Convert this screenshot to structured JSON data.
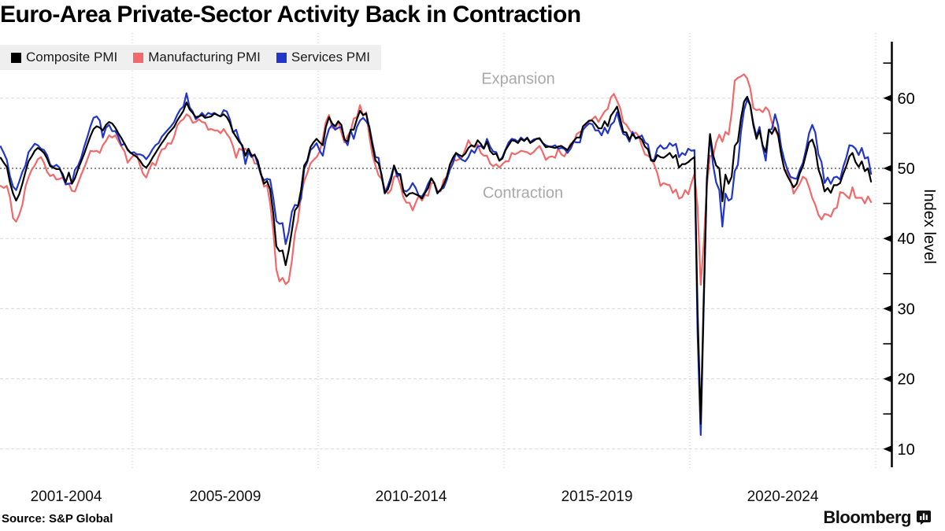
{
  "header": {
    "title": "Euro-Area Private-Sector Activity Back in Contraction"
  },
  "legend": {
    "items": [
      {
        "label": "Composite PMI",
        "color": "#000000"
      },
      {
        "label": "Manufacturing PMI",
        "color": "#f2696b"
      },
      {
        "label": "Services PMI",
        "color": "#2236c7"
      }
    ]
  },
  "chart_data": {
    "type": "line",
    "frequency": "monthly",
    "x_start": "2001-06",
    "x_end": "2024-11",
    "x_group_labels": [
      "2001-2004",
      "2005-2009",
      "2010-2014",
      "2015-2019",
      "2020-2024"
    ],
    "x_group_boundaries_years": [
      2005,
      2010,
      2015,
      2020,
      2025
    ],
    "ylabel": "Index level",
    "ylim": [
      7.5,
      68
    ],
    "yticks": [
      10,
      20,
      30,
      40,
      50,
      60
    ],
    "yticks_minor": [
      15,
      25,
      35,
      45,
      55,
      65
    ],
    "threshold": {
      "value": 50,
      "above_label": "Expansion",
      "below_label": "Contraction"
    },
    "grid": true,
    "legend_position": "top-left",
    "series": [
      {
        "name": "Composite PMI",
        "color": "#000000",
        "values": [
          51.5,
          50.8,
          50.2,
          48.0,
          46.4,
          45.4,
          46.3,
          47.8,
          49.5,
          51.0,
          51.7,
          52.5,
          52.9,
          52.6,
          52.2,
          51.4,
          50.3,
          50.1,
          49.9,
          49.9,
          49.2,
          48.0,
          49.4,
          47.8,
          48.6,
          49.9,
          51.0,
          52.1,
          53.4,
          54.6,
          55.6,
          56.0,
          55.8,
          55.4,
          56.2,
          56.6,
          56.4,
          55.8,
          55.0,
          54.3,
          53.5,
          52.7,
          52.2,
          51.9,
          51.6,
          51.1,
          50.4,
          50.1,
          50.7,
          51.5,
          52.2,
          52.9,
          53.6,
          54.2,
          54.9,
          55.4,
          55.9,
          56.8,
          57.5,
          58.2,
          59.4,
          58.4,
          57.9,
          57.3,
          57.4,
          57.6,
          57.2,
          57.3,
          57.4,
          57.8,
          57.6,
          57.4,
          57.7,
          57.3,
          56.5,
          55.2,
          54.5,
          53.8,
          53.3,
          51.8,
          52.8,
          51.8,
          51.9,
          51.1,
          49.3,
          47.8,
          48.2,
          47.0,
          43.6,
          38.9,
          38.2,
          38.3,
          36.2,
          38.3,
          41.1,
          44.0,
          44.6,
          47.0,
          50.4,
          51.1,
          53.0,
          53.7,
          54.2,
          53.7,
          53.3,
          55.9,
          57.3,
          56.4,
          56.0,
          56.7,
          56.2,
          54.1,
          53.8,
          55.5,
          55.5,
          57.0,
          58.2,
          57.6,
          57.8,
          55.8,
          53.3,
          51.1,
          50.7,
          49.1,
          46.5,
          47.0,
          48.3,
          50.4,
          49.3,
          49.1,
          46.7,
          46.0,
          46.4,
          46.5,
          46.3,
          46.1,
          45.7,
          46.5,
          47.2,
          48.6,
          47.9,
          46.5,
          46.9,
          47.7,
          48.7,
          50.5,
          51.5,
          52.2,
          51.9,
          51.7,
          52.1,
          52.9,
          53.3,
          53.1,
          54.0,
          53.5,
          52.8,
          53.8,
          52.5,
          52.0,
          52.1,
          51.1,
          51.4,
          52.6,
          53.3,
          54.0,
          53.9,
          53.6,
          54.2,
          53.9,
          54.3,
          53.6,
          53.9,
          54.2,
          54.3,
          53.6,
          53.0,
          53.1,
          53.0,
          52.9,
          53.1,
          53.2,
          52.9,
          52.6,
          53.3,
          53.9,
          54.4,
          54.4,
          56.0,
          56.4,
          56.8,
          56.8,
          56.3,
          55.7,
          55.7,
          56.7,
          56.0,
          57.5,
          58.1,
          58.8,
          57.1,
          55.2,
          55.1,
          54.1,
          54.9,
          54.3,
          54.5,
          54.1,
          53.1,
          52.7,
          51.1,
          51.0,
          51.9,
          51.6,
          51.5,
          51.8,
          52.2,
          51.5,
          51.9,
          50.1,
          50.6,
          50.6,
          50.9,
          51.3,
          51.6,
          29.7,
          13.6,
          31.9,
          48.5,
          54.9,
          51.9,
          50.4,
          50.0,
          45.3,
          49.1,
          47.8,
          48.8,
          53.2,
          53.8,
          57.1,
          59.5,
          60.2,
          59.0,
          56.2,
          54.2,
          55.4,
          53.3,
          52.3,
          55.5,
          54.9,
          55.8,
          54.8,
          52.0,
          49.9,
          48.9,
          48.1,
          47.3,
          47.8,
          49.3,
          50.3,
          52.0,
          53.7,
          54.1,
          52.8,
          49.9,
          48.6,
          46.7,
          47.2,
          46.5,
          47.6,
          47.6,
          47.9,
          49.2,
          50.3,
          51.7,
          52.2,
          50.9,
          50.2,
          51.0,
          49.6,
          50.0,
          48.1
        ]
      },
      {
        "name": "Manufacturing PMI",
        "color": "#f2696b",
        "values": [
          47.5,
          47.2,
          47.5,
          45.9,
          42.9,
          42.4,
          43.4,
          44.8,
          47.4,
          48.7,
          49.8,
          50.4,
          51.3,
          51.6,
          50.8,
          49.5,
          48.9,
          49.1,
          48.4,
          48.5,
          48.7,
          47.9,
          47.8,
          46.8,
          46.7,
          47.9,
          49.1,
          50.1,
          51.3,
          52.5,
          52.4,
          52.5,
          52.2,
          53.3,
          53.9,
          54.7,
          54.4,
          54.7,
          53.9,
          53.1,
          52.4,
          50.8,
          51.4,
          51.9,
          51.9,
          50.4,
          49.2,
          48.7,
          49.9,
          50.8,
          50.4,
          51.7,
          52.7,
          52.8,
          53.6,
          53.5,
          54.5,
          56.1,
          56.7,
          57.0,
          57.7,
          57.4,
          56.5,
          56.6,
          57.0,
          56.6,
          56.5,
          55.5,
          55.6,
          55.4,
          55.4,
          55.0,
          55.6,
          54.9,
          54.3,
          53.2,
          51.5,
          52.8,
          52.6,
          52.8,
          52.3,
          52.0,
          50.7,
          50.6,
          49.2,
          47.4,
          47.6,
          45.0,
          41.1,
          35.6,
          33.9,
          34.4,
          33.5,
          33.9,
          36.8,
          40.7,
          42.6,
          46.3,
          48.2,
          49.3,
          50.7,
          51.2,
          51.6,
          52.4,
          54.2,
          56.6,
          57.6,
          55.8,
          55.6,
          56.7,
          55.1,
          53.7,
          54.6,
          55.3,
          57.1,
          57.3,
          59.0,
          57.5,
          58.0,
          54.6,
          52.0,
          50.4,
          49.0,
          48.5,
          47.1,
          46.4,
          46.9,
          48.8,
          49.0,
          47.7,
          45.9,
          45.1,
          45.1,
          44.0,
          45.1,
          46.1,
          45.4,
          46.2,
          46.1,
          47.9,
          47.9,
          46.8,
          46.7,
          48.3,
          48.8,
          50.3,
          51.4,
          51.1,
          51.3,
          51.6,
          52.7,
          54.0,
          53.2,
          53.0,
          53.4,
          52.2,
          51.8,
          51.8,
          50.7,
          50.3,
          50.6,
          50.1,
          50.6,
          51.0,
          51.0,
          52.2,
          52.0,
          52.2,
          52.5,
          52.4,
          52.3,
          52.0,
          52.3,
          52.8,
          53.2,
          52.3,
          51.2,
          51.6,
          51.7,
          51.5,
          52.8,
          52.0,
          51.7,
          52.6,
          53.5,
          53.7,
          54.9,
          55.2,
          55.4,
          56.2,
          56.7,
          57.0,
          57.4,
          56.6,
          57.4,
          58.1,
          58.5,
          60.1,
          60.6,
          59.6,
          58.6,
          56.6,
          56.2,
          55.5,
          54.9,
          55.1,
          54.6,
          53.2,
          52.0,
          51.8,
          51.4,
          50.5,
          49.3,
          47.5,
          47.9,
          47.7,
          47.6,
          46.5,
          47.0,
          45.7,
          45.9,
          46.9,
          46.3,
          47.9,
          49.2,
          44.5,
          33.4,
          39.4,
          47.4,
          51.8,
          51.7,
          53.7,
          54.8,
          53.8,
          55.2,
          54.8,
          57.9,
          62.5,
          62.9,
          63.1,
          63.4,
          62.8,
          61.4,
          58.6,
          58.3,
          58.4,
          58.0,
          58.7,
          58.2,
          56.5,
          55.5,
          54.6,
          52.1,
          49.8,
          49.6,
          48.4,
          46.4,
          47.1,
          47.8,
          48.8,
          48.5,
          47.3,
          45.8,
          44.8,
          43.4,
          42.7,
          43.5,
          43.4,
          43.1,
          44.2,
          44.4,
          46.6,
          46.5,
          46.1,
          45.7,
          47.3,
          45.8,
          45.8,
          45.8,
          45.0,
          46.0,
          45.2
        ]
      },
      {
        "name": "Services PMI",
        "color": "#2236c7",
        "values": [
          53.1,
          52.2,
          51.2,
          48.9,
          47.4,
          46.9,
          48.1,
          49.5,
          50.4,
          52.3,
          52.9,
          53.5,
          53.3,
          52.8,
          52.6,
          51.9,
          50.5,
          50.2,
          50.5,
          50.1,
          48.9,
          47.7,
          47.8,
          47.9,
          49.8,
          50.4,
          51.5,
          53.1,
          54.5,
          56.0,
          57.2,
          57.4,
          56.8,
          54.4,
          55.8,
          56.2,
          55.3,
          55.3,
          54.5,
          53.3,
          53.5,
          52.6,
          52.2,
          52.3,
          52.0,
          52.0,
          51.8,
          51.3,
          51.9,
          52.7,
          53.3,
          53.6,
          54.5,
          55.0,
          55.5,
          56.0,
          56.6,
          57.6,
          58.4,
          58.8,
          60.7,
          58.7,
          58.1,
          57.0,
          57.4,
          57.9,
          57.4,
          57.9,
          57.7,
          57.9,
          57.6,
          57.4,
          58.3,
          58.1,
          57.0,
          55.1,
          55.5,
          54.1,
          53.1,
          50.6,
          52.3,
          51.6,
          52.0,
          50.6,
          49.1,
          48.3,
          48.5,
          48.4,
          45.8,
          42.5,
          42.1,
          42.2,
          39.2,
          40.9,
          43.8,
          44.8,
          44.7,
          45.7,
          49.9,
          50.9,
          52.6,
          53.0,
          53.6,
          52.5,
          51.8,
          54.1,
          55.6,
          56.2,
          55.5,
          55.8,
          55.9,
          54.1,
          53.3,
          55.4,
          54.2,
          55.9,
          56.8,
          57.2,
          56.7,
          56.0,
          53.7,
          51.6,
          51.5,
          48.8,
          46.4,
          47.5,
          48.8,
          50.4,
          48.8,
          49.2,
          46.9,
          46.7,
          47.1,
          47.9,
          47.2,
          46.1,
          46.0,
          46.7,
          47.8,
          48.6,
          47.9,
          46.4,
          47.0,
          47.2,
          48.3,
          49.8,
          50.7,
          52.2,
          51.6,
          51.2,
          51.0,
          51.6,
          52.6,
          52.2,
          53.1,
          53.2,
          52.8,
          54.2,
          53.1,
          52.4,
          52.3,
          51.1,
          51.6,
          52.7,
          53.7,
          54.2,
          54.1,
          53.8,
          54.4,
          54.0,
          54.4,
          53.7,
          54.1,
          54.2,
          54.2,
          53.6,
          53.3,
          53.1,
          53.1,
          53.3,
          52.8,
          52.9,
          52.8,
          52.2,
          52.8,
          53.8,
          53.7,
          53.7,
          55.5,
          56.0,
          56.4,
          56.3,
          55.4,
          55.4,
          54.7,
          55.8,
          55.0,
          56.2,
          56.6,
          58.0,
          56.2,
          54.9,
          54.7,
          53.8,
          55.2,
          54.2,
          54.4,
          54.7,
          53.7,
          53.4,
          51.2,
          51.2,
          52.8,
          53.3,
          52.8,
          52.9,
          53.6,
          53.2,
          53.5,
          51.6,
          52.2,
          51.9,
          52.8,
          52.5,
          52.6,
          26.4,
          12.0,
          30.5,
          48.3,
          54.7,
          50.5,
          48.0,
          46.9,
          41.7,
          46.4,
          45.4,
          45.7,
          49.6,
          50.5,
          55.2,
          58.3,
          59.8,
          59.0,
          56.4,
          54.6,
          55.9,
          53.1,
          51.1,
          55.5,
          55.6,
          57.7,
          56.1,
          53.0,
          51.2,
          49.8,
          48.8,
          48.6,
          48.5,
          49.8,
          50.8,
          52.7,
          55.0,
          56.2,
          55.1,
          52.0,
          50.9,
          47.9,
          48.7,
          47.8,
          48.7,
          48.8,
          48.4,
          50.2,
          51.5,
          53.3,
          53.2,
          52.8,
          51.9,
          52.9,
          51.4,
          51.6,
          49.2
        ]
      }
    ]
  },
  "footer": {
    "source": "Source: S&P Global",
    "brand": "Bloomberg",
    "brand_icon": "bloomberg-bars-icon"
  }
}
